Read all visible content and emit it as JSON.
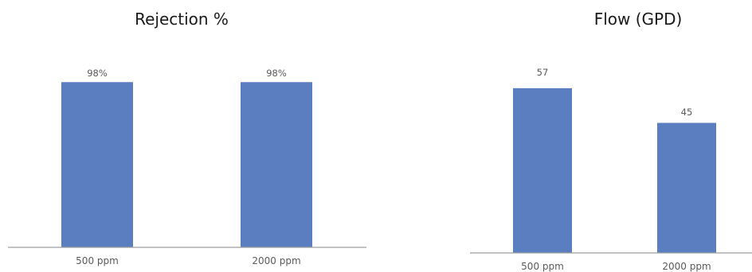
{
  "chart_data": [
    {
      "type": "bar",
      "title": "Rejection %",
      "categories": [
        "500 ppm",
        "2000 ppm"
      ],
      "values": [
        98,
        98
      ],
      "data_labels": [
        "98%",
        "98%"
      ],
      "ylim": [
        0,
        100
      ],
      "color": "#5a7ebf",
      "grid": false,
      "legend": "none"
    },
    {
      "type": "bar",
      "title": "Flow (GPD)",
      "categories": [
        "500 ppm",
        "2000 ppm"
      ],
      "values": [
        57,
        45
      ],
      "data_labels": [
        "57",
        "45"
      ],
      "ylim": [
        0,
        60
      ],
      "color": "#5a7ebf",
      "grid": false,
      "legend": "none"
    }
  ]
}
